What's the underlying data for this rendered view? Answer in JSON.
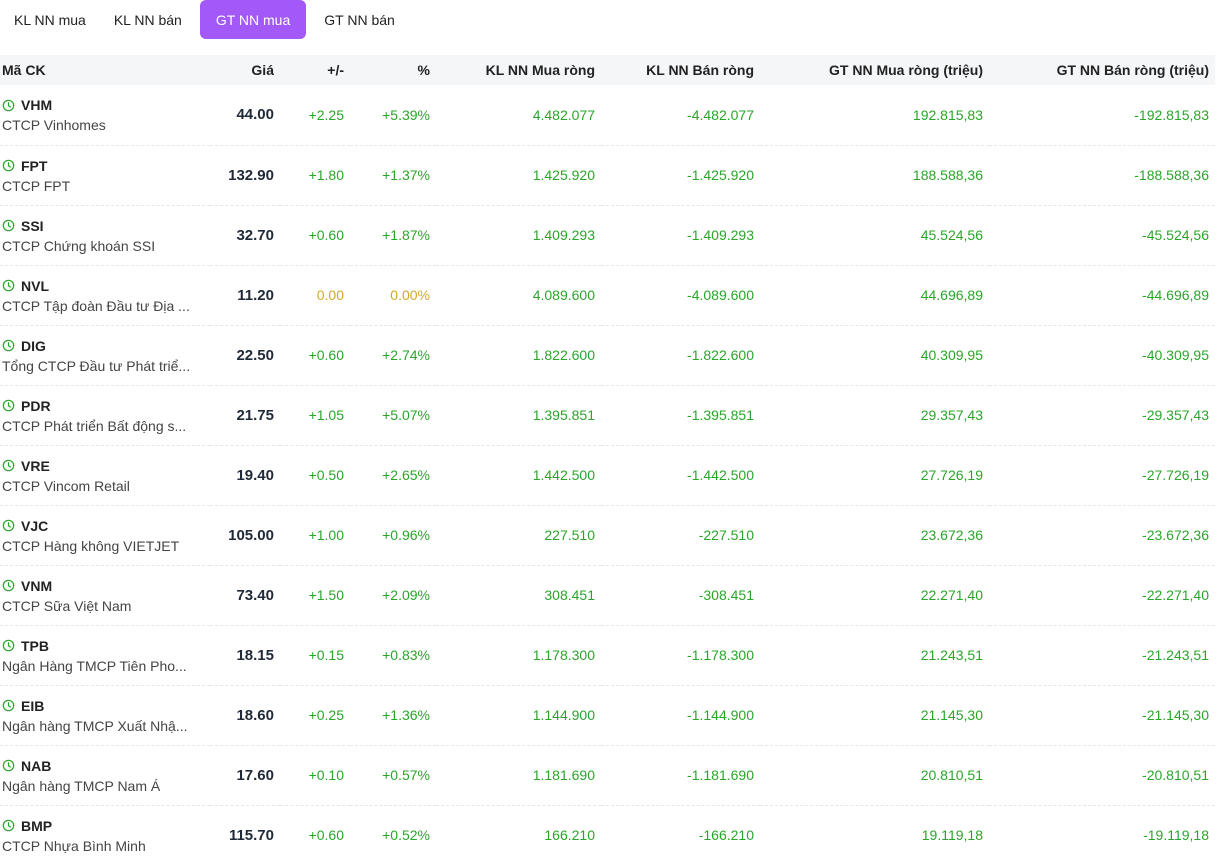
{
  "tabs": [
    {
      "label": "KL NN mua",
      "active": false
    },
    {
      "label": "KL NN bán",
      "active": false
    },
    {
      "label": "GT NN mua",
      "active": true
    },
    {
      "label": "GT NN bán",
      "active": false
    }
  ],
  "table": {
    "headers": [
      "Mã CK",
      "Giá",
      "+/-",
      "%",
      "KL NN Mua ròng",
      "KL NN Bán ròng",
      "GT NN Mua ròng (triệu)",
      "GT NN Bán ròng (triệu)"
    ],
    "rows": [
      {
        "symbol": "VHM",
        "name": "CTCP Vinhomes",
        "price": "44.00",
        "change": "+2.25",
        "pct": "+5.39%",
        "kl_mua": "4.482.077",
        "kl_ban": "-4.482.077",
        "gt_mua": "192.815,83",
        "gt_ban": "-192.815,83",
        "status": "up"
      },
      {
        "symbol": "FPT",
        "name": "CTCP FPT",
        "price": "132.90",
        "change": "+1.80",
        "pct": "+1.37%",
        "kl_mua": "1.425.920",
        "kl_ban": "-1.425.920",
        "gt_mua": "188.588,36",
        "gt_ban": "-188.588,36",
        "status": "up"
      },
      {
        "symbol": "SSI",
        "name": "CTCP Chứng khoán SSI",
        "price": "32.70",
        "change": "+0.60",
        "pct": "+1.87%",
        "kl_mua": "1.409.293",
        "kl_ban": "-1.409.293",
        "gt_mua": "45.524,56",
        "gt_ban": "-45.524,56",
        "status": "up"
      },
      {
        "symbol": "NVL",
        "name": "CTCP Tập đoàn Đầu tư Địa ...",
        "price": "11.20",
        "change": "0.00",
        "pct": "0.00%",
        "kl_mua": "4.089.600",
        "kl_ban": "-4.089.600",
        "gt_mua": "44.696,89",
        "gt_ban": "-44.696,89",
        "status": "ref"
      },
      {
        "symbol": "DIG",
        "name": "Tổng CTCP Đầu tư Phát triể...",
        "price": "22.50",
        "change": "+0.60",
        "pct": "+2.74%",
        "kl_mua": "1.822.600",
        "kl_ban": "-1.822.600",
        "gt_mua": "40.309,95",
        "gt_ban": "-40.309,95",
        "status": "up"
      },
      {
        "symbol": "PDR",
        "name": "CTCP Phát triển Bất động s...",
        "price": "21.75",
        "change": "+1.05",
        "pct": "+5.07%",
        "kl_mua": "1.395.851",
        "kl_ban": "-1.395.851",
        "gt_mua": "29.357,43",
        "gt_ban": "-29.357,43",
        "status": "up"
      },
      {
        "symbol": "VRE",
        "name": "CTCP Vincom Retail",
        "price": "19.40",
        "change": "+0.50",
        "pct": "+2.65%",
        "kl_mua": "1.442.500",
        "kl_ban": "-1.442.500",
        "gt_mua": "27.726,19",
        "gt_ban": "-27.726,19",
        "status": "up"
      },
      {
        "symbol": "VJC",
        "name": "CTCP Hàng không VIETJET",
        "price": "105.00",
        "change": "+1.00",
        "pct": "+0.96%",
        "kl_mua": "227.510",
        "kl_ban": "-227.510",
        "gt_mua": "23.672,36",
        "gt_ban": "-23.672,36",
        "status": "up"
      },
      {
        "symbol": "VNM",
        "name": "CTCP Sữa Việt Nam",
        "price": "73.40",
        "change": "+1.50",
        "pct": "+2.09%",
        "kl_mua": "308.451",
        "kl_ban": "-308.451",
        "gt_mua": "22.271,40",
        "gt_ban": "-22.271,40",
        "status": "up"
      },
      {
        "symbol": "TPB",
        "name": "Ngân Hàng TMCP Tiên Pho...",
        "price": "18.15",
        "change": "+0.15",
        "pct": "+0.83%",
        "kl_mua": "1.178.300",
        "kl_ban": "-1.178.300",
        "gt_mua": "21.243,51",
        "gt_ban": "-21.243,51",
        "status": "up"
      },
      {
        "symbol": "EIB",
        "name": "Ngân hàng TMCP Xuất Nhậ...",
        "price": "18.60",
        "change": "+0.25",
        "pct": "+1.36%",
        "kl_mua": "1.144.900",
        "kl_ban": "-1.144.900",
        "gt_mua": "21.145,30",
        "gt_ban": "-21.145,30",
        "status": "up"
      },
      {
        "symbol": "NAB",
        "name": "Ngân hàng TMCP Nam Á",
        "price": "17.60",
        "change": "+0.10",
        "pct": "+0.57%",
        "kl_mua": "1.181.690",
        "kl_ban": "-1.181.690",
        "gt_mua": "20.810,51",
        "gt_ban": "-20.810,51",
        "status": "up"
      },
      {
        "symbol": "BMP",
        "name": "CTCP Nhựa Bình Minh",
        "price": "115.70",
        "change": "+0.60",
        "pct": "+0.52%",
        "kl_mua": "166.210",
        "kl_ban": "-166.210",
        "gt_mua": "19.119,18",
        "gt_ban": "-19.119,18",
        "status": "up"
      }
    ]
  },
  "colors": {
    "accent": "#a259f7",
    "up": "#2aa52a",
    "ref": "#d4a72c",
    "clock": "#2aa52a"
  }
}
